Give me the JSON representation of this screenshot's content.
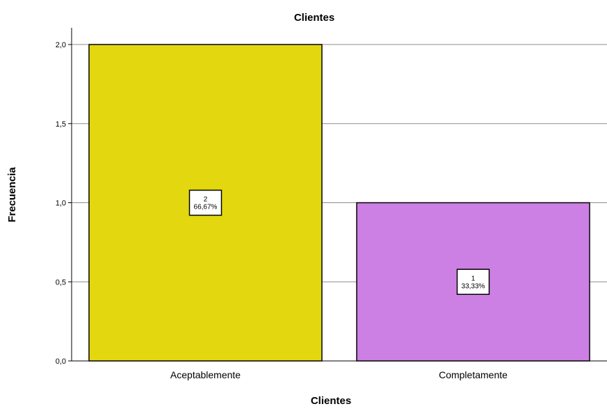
{
  "chart_data": {
    "type": "bar",
    "title": "Clientes",
    "xlabel": "Clientes",
    "ylabel": "Frecuencia",
    "categories": [
      "Aceptablemente",
      "Completamente"
    ],
    "values": [
      2,
      1
    ],
    "percent_labels": [
      "66,67%",
      "33,33%"
    ],
    "count_labels": [
      "2",
      "1"
    ],
    "bar_colors": [
      "#e3d80f",
      "#cc80e3"
    ],
    "ylim": [
      0,
      2
    ],
    "yticks": [
      0,
      0.5,
      1,
      1.5,
      2
    ],
    "ytick_labels": [
      "0,0",
      "0,5",
      "1,0",
      "1,5",
      "2,0"
    ],
    "grid": true
  }
}
